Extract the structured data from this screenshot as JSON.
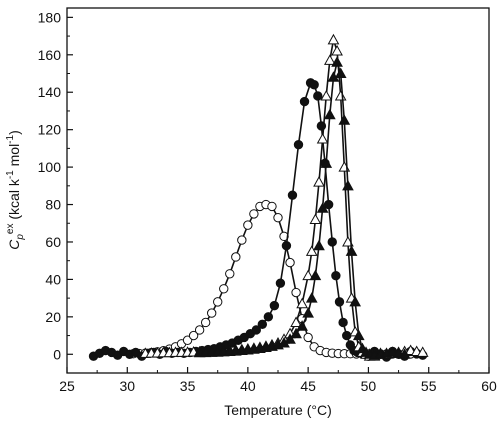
{
  "chart_data": {
    "type": "scatter",
    "title": "",
    "xlabel": "Temperature (°C)",
    "ylabel": {
      "symbol": "C",
      "sub": "p",
      "sup": "ex",
      "units_prefix": "(kcal k",
      "units_sup1": "-1",
      "units_mid": " mol",
      "units_sup2": "-1",
      "units_suffix": ")"
    },
    "xlim": [
      25,
      60
    ],
    "ylim": [
      -10,
      185
    ],
    "xticks": [
      25,
      30,
      35,
      40,
      45,
      50,
      55,
      60
    ],
    "yticks": [
      0,
      20,
      40,
      60,
      80,
      100,
      120,
      140,
      160,
      180
    ],
    "grid": false,
    "legend": "none",
    "series": [
      {
        "marker": "open-circle",
        "color": "#111111",
        "x": [
          30.5,
          31,
          31.5,
          32,
          32.5,
          33,
          33.5,
          34,
          34.5,
          35,
          35.5,
          36,
          36.5,
          37,
          37.5,
          38,
          38.5,
          39,
          39.5,
          40,
          40.5,
          41,
          41.5,
          42,
          42.5,
          43,
          43.5,
          44,
          44.5,
          45,
          45.5,
          46,
          46.5,
          47,
          47.5,
          48,
          48.5,
          49,
          49.5,
          50,
          50.5,
          51,
          51.5,
          52,
          52.5,
          53,
          53.5,
          54
        ],
        "y": [
          0.3,
          0.4,
          0.6,
          0.9,
          1.3,
          1.9,
          2.8,
          4.0,
          5.6,
          7.5,
          10,
          13,
          17,
          22,
          28,
          35,
          43,
          52,
          61,
          69,
          75,
          79,
          80,
          79,
          73,
          63,
          49,
          33,
          19,
          9,
          4,
          2,
          1,
          0.6,
          0.4,
          0.3,
          0.3,
          0.2,
          0.2,
          0.2,
          0.2,
          0.2,
          0.2,
          0.2,
          0.2,
          0.2,
          0.2,
          0.2
        ]
      },
      {
        "marker": "filled-circle",
        "color": "#111111",
        "x": [
          27.2,
          27.7,
          28.2,
          28.7,
          29.2,
          29.7,
          30.2,
          30.7,
          31.2,
          31.7,
          32.2,
          32.7,
          33.2,
          33.7,
          34.2,
          34.7,
          35.2,
          35.7,
          36.2,
          36.7,
          37.2,
          37.7,
          38.2,
          38.7,
          39.2,
          39.7,
          40.2,
          40.7,
          41.2,
          41.7,
          42.2,
          42.7,
          43.2,
          43.7,
          44.2,
          44.7,
          45.2,
          45.5,
          45.8,
          46.1,
          46.4,
          46.7,
          47.0,
          47.3,
          47.6,
          47.9,
          48.2,
          48.5,
          48.8,
          49.1,
          49.4,
          49.7,
          50.0,
          50.5,
          51.0,
          51.5,
          52.0,
          52.5,
          53.0,
          53.5,
          54.0,
          54.5
        ],
        "y": [
          -1,
          0.5,
          2,
          1,
          -0.5,
          1.5,
          0,
          1,
          -1,
          0.5,
          1,
          0,
          1.5,
          0.5,
          1,
          0.5,
          1,
          1.5,
          2,
          2.5,
          3,
          4,
          5,
          6,
          7.5,
          9,
          11,
          13,
          16,
          20,
          26,
          38,
          58,
          85,
          112,
          135,
          145,
          144,
          138,
          122,
          102,
          80,
          60,
          42,
          28,
          17,
          10,
          5,
          2,
          1,
          0.5,
          0,
          -1,
          1.5,
          0,
          -1.5,
          1.5,
          0,
          -1,
          1.5,
          0.5,
          -0.5
        ]
      },
      {
        "marker": "open-triangle",
        "color": "#111111",
        "x": [
          31.5,
          32,
          32.5,
          33,
          33.5,
          34,
          34.5,
          35,
          35.5,
          36,
          36.5,
          37,
          37.5,
          38,
          38.5,
          39,
          39.5,
          40,
          40.5,
          41,
          41.5,
          42,
          42.5,
          43,
          43.5,
          44,
          44.5,
          45,
          45.3,
          45.6,
          45.9,
          46.2,
          46.5,
          46.8,
          47.1,
          47.4,
          47.7,
          48.0,
          48.3,
          48.6,
          48.9,
          49.2,
          49.5,
          49.8,
          50.1,
          50.5,
          51,
          51.5,
          52,
          52.5,
          53,
          53.5,
          54,
          54.5
        ],
        "y": [
          0.5,
          0.6,
          0.7,
          0.8,
          0.9,
          1.0,
          1.0,
          1.1,
          1.2,
          1.3,
          1.4,
          1.5,
          1.6,
          1.8,
          2.0,
          2.2,
          2.5,
          2.8,
          3.2,
          3.7,
          4.3,
          5,
          6,
          8,
          11,
          17,
          27,
          42,
          55,
          72,
          92,
          115,
          138,
          157,
          168,
          162,
          138,
          100,
          60,
          30,
          12,
          4,
          1,
          0,
          -1,
          -1,
          0.5,
          0,
          0.5,
          1,
          1.5,
          2,
          1.5,
          1
        ]
      },
      {
        "marker": "filled-triangle",
        "color": "#111111",
        "x": [
          36,
          36.5,
          37,
          37.5,
          38,
          38.5,
          39,
          39.5,
          40,
          40.5,
          41,
          41.5,
          42,
          42.5,
          43,
          43.5,
          44,
          44.5,
          45,
          45.3,
          45.6,
          45.9,
          46.2,
          46.5,
          46.8,
          47.1,
          47.4,
          47.7,
          48.0,
          48.3,
          48.6,
          48.9,
          49.2,
          49.5,
          49.8,
          50.1,
          50.5,
          51,
          51.5,
          52,
          52.5,
          53
        ],
        "y": [
          0.8,
          0.9,
          1.0,
          1.1,
          1.3,
          1.5,
          1.7,
          2.0,
          2.3,
          2.7,
          3.1,
          3.6,
          4.2,
          5.0,
          6,
          8,
          11,
          15,
          22,
          30,
          42,
          58,
          78,
          102,
          128,
          148,
          156,
          150,
          125,
          90,
          55,
          28,
          10,
          3,
          1,
          0,
          -0.5,
          0,
          0.5,
          1,
          0.5,
          0
        ]
      }
    ]
  }
}
